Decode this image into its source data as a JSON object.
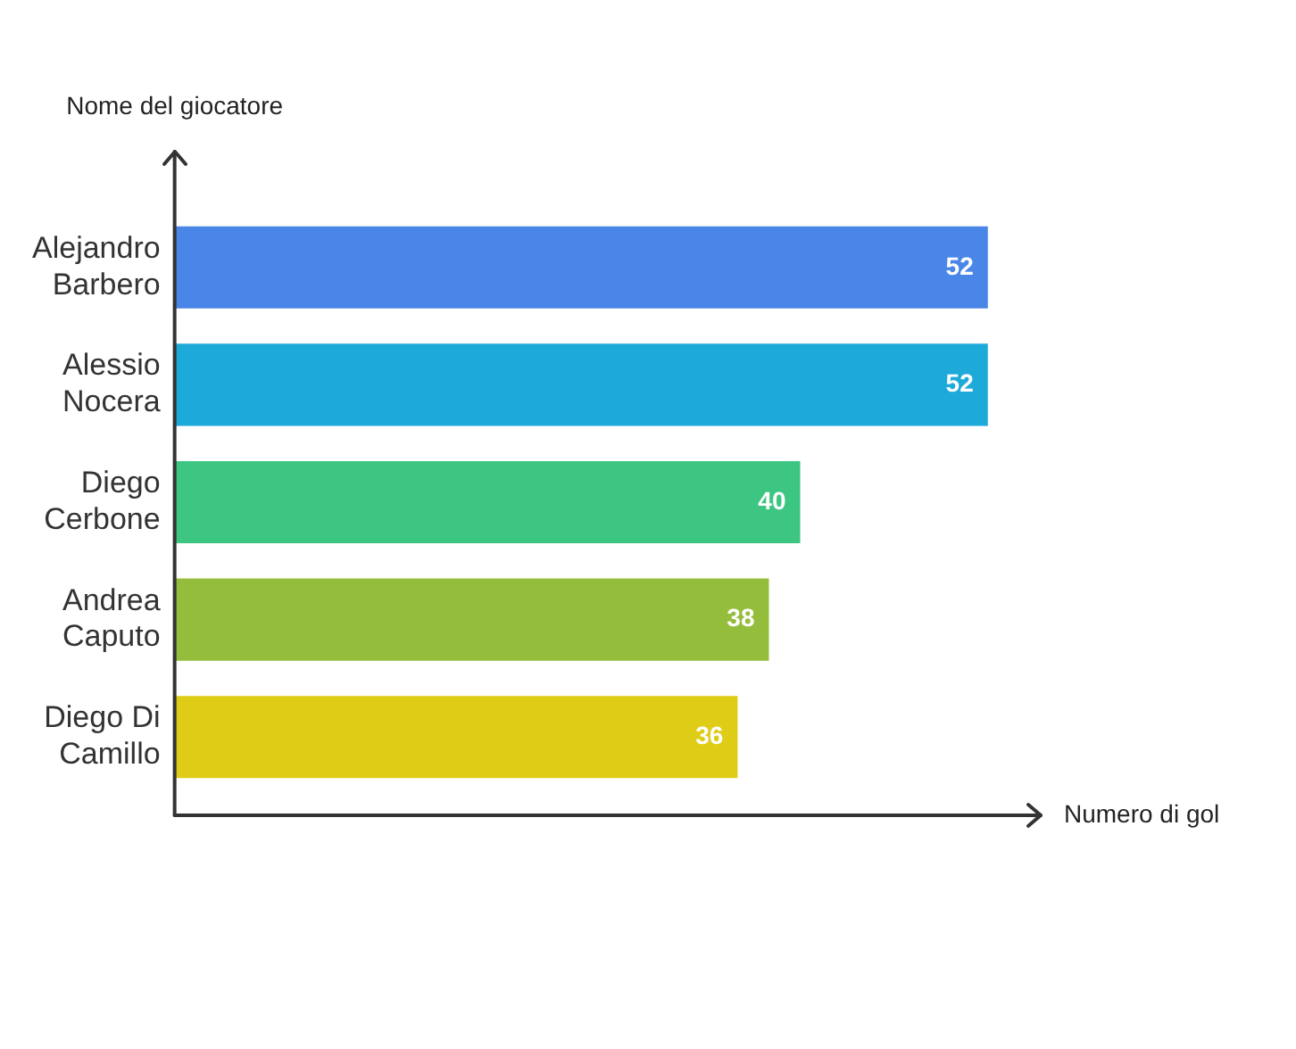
{
  "chart_data": {
    "type": "bar",
    "orientation": "horizontal",
    "xlabel": "Numero di gol",
    "ylabel": "Nome del giocatore",
    "categories": [
      "Alejandro Barbero",
      "Alessio Nocera",
      "Diego Cerbone",
      "Andrea Caputo",
      "Diego Di Camillo"
    ],
    "values": [
      52,
      52,
      40,
      38,
      36
    ],
    "colors": [
      "#4a86e8",
      "#1eaad9",
      "#3cc681",
      "#93bd3a",
      "#dfcc16"
    ],
    "data_labels": true,
    "grid": false,
    "legend": false
  }
}
